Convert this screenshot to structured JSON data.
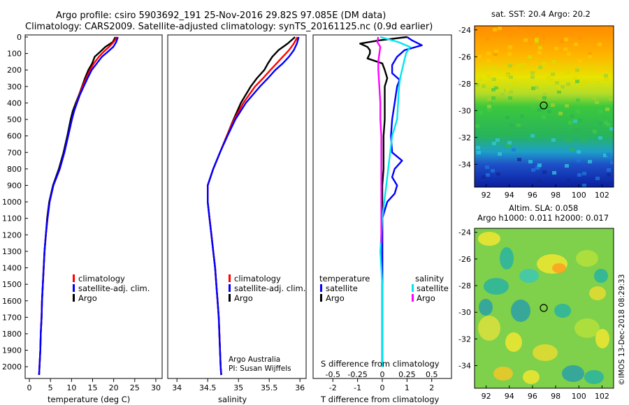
{
  "header": {
    "line1": "Argo profile: csiro 5903692_191 25-Nov-2016 29.82S 97.085E (DM data)",
    "line2": "Climatology: CARS2009. Satellite-adjusted climatology: synTS_20161125.nc (0.9d earlier)"
  },
  "colors": {
    "climatology": "#ff0000",
    "satellite": "#0000ff",
    "argo": "#000000",
    "sat_salinity": "#00e5ee",
    "argo_salinity": "#ff00ff"
  },
  "depth_ticks": [
    "0",
    "100",
    "200",
    "300",
    "400",
    "500",
    "600",
    "700",
    "800",
    "900",
    "1000",
    "1100",
    "1200",
    "1300",
    "1400",
    "1500",
    "1600",
    "1700",
    "1800",
    "1900",
    "2000"
  ],
  "chart_data": [
    {
      "type": "line",
      "name": "temperature",
      "xlabel": "temperature (deg C)",
      "xlim": [
        -1,
        31.5
      ],
      "xticks": [
        "0",
        "5",
        "10",
        "15",
        "20",
        "25",
        "30"
      ],
      "ylim": [
        0,
        2070
      ],
      "legend": {
        "climatology": "climatology",
        "satellite": "satellite-adj. clim.",
        "argo": "Argo"
      },
      "series": [
        {
          "name": "Argo",
          "color_key": "argo",
          "depth": [
            0,
            30,
            60,
            90,
            120,
            160,
            200,
            250,
            300,
            350,
            400,
            450,
            500,
            600,
            700,
            800,
            900,
            1000,
            1100,
            1200,
            1300,
            1400,
            1500,
            1600,
            1700,
            1800,
            1900,
            2000,
            2050
          ],
          "values": [
            20.4,
            19.8,
            18.0,
            16.8,
            15.5,
            14.9,
            14.0,
            13.2,
            12.5,
            11.8,
            11.0,
            10.3,
            9.8,
            9.0,
            8.1,
            7.0,
            5.6,
            4.7,
            4.2,
            3.9,
            3.6,
            3.4,
            3.2,
            3.0,
            2.9,
            2.7,
            2.6,
            2.4,
            2.3
          ]
        },
        {
          "name": "climatology",
          "color_key": "climatology",
          "depth": [
            0,
            30,
            60,
            90,
            120,
            160,
            200,
            250,
            300,
            350,
            400,
            450,
            500,
            600,
            700,
            800,
            900,
            1000,
            1100,
            1200,
            1300,
            1400,
            1500,
            1600,
            1700,
            1800,
            1900,
            2000,
            2050
          ],
          "values": [
            20.8,
            20.0,
            18.9,
            17.6,
            16.5,
            15.3,
            14.4,
            13.5,
            12.6,
            11.9,
            11.2,
            10.6,
            10.1,
            9.2,
            8.3,
            7.2,
            5.7,
            4.8,
            4.3,
            3.9,
            3.6,
            3.4,
            3.2,
            3.0,
            2.9,
            2.7,
            2.6,
            2.4,
            2.3
          ]
        },
        {
          "name": "satellite-adj. clim.",
          "color_key": "satellite",
          "depth": [
            0,
            30,
            60,
            90,
            120,
            160,
            200,
            250,
            300,
            350,
            400,
            450,
            500,
            600,
            700,
            800,
            900,
            1000,
            1100,
            1200,
            1300,
            1400,
            1500,
            1600,
            1700,
            1800,
            1900,
            2000,
            2050
          ],
          "values": [
            21.0,
            20.6,
            19.9,
            18.6,
            17.2,
            16.0,
            14.8,
            13.8,
            12.9,
            12.0,
            11.3,
            10.6,
            10.1,
            9.2,
            8.3,
            7.2,
            5.7,
            4.8,
            4.3,
            3.9,
            3.6,
            3.4,
            3.2,
            3.0,
            2.9,
            2.7,
            2.6,
            2.4,
            2.3
          ]
        }
      ]
    },
    {
      "type": "line",
      "name": "salinity",
      "xlabel": "salinity",
      "xlim": [
        33.85,
        36.1
      ],
      "xticks": [
        "34",
        "34.5",
        "35",
        "35.5",
        "36"
      ],
      "ylim": [
        0,
        2070
      ],
      "legend": {
        "climatology": "climatology",
        "satellite": "satellite-adj. clim.",
        "argo": "Argo"
      },
      "credit1": "Argo Australia",
      "credit2": "PI: Susan Wijffels",
      "series": [
        {
          "name": "Argo",
          "color_key": "argo",
          "depth": [
            0,
            40,
            80,
            120,
            160,
            200,
            250,
            300,
            400,
            500,
            600,
            700,
            800,
            900,
            1000,
            1100,
            1200,
            1300,
            1400,
            1500,
            1600,
            1700,
            1800,
            1900,
            2000,
            2050
          ],
          "values": [
            35.92,
            35.8,
            35.65,
            35.55,
            35.48,
            35.42,
            35.3,
            35.2,
            35.04,
            34.92,
            34.81,
            34.7,
            34.59,
            34.5,
            34.5,
            34.53,
            34.56,
            34.59,
            34.62,
            34.64,
            34.66,
            34.68,
            34.69,
            34.7,
            34.71,
            34.72
          ]
        },
        {
          "name": "climatology",
          "color_key": "climatology",
          "depth": [
            0,
            40,
            80,
            120,
            160,
            200,
            250,
            300,
            400,
            500,
            600,
            700,
            800,
            900,
            1000,
            1100,
            1200,
            1300,
            1400,
            1500,
            1600,
            1700,
            1800,
            1900,
            2000,
            2050
          ],
          "values": [
            35.96,
            35.9,
            35.82,
            35.72,
            35.62,
            35.52,
            35.4,
            35.27,
            35.08,
            34.93,
            34.81,
            34.7,
            34.59,
            34.5,
            34.5,
            34.53,
            34.56,
            34.59,
            34.62,
            34.64,
            34.66,
            34.68,
            34.69,
            34.7,
            34.71,
            34.72
          ]
        },
        {
          "name": "satellite-adj. clim.",
          "color_key": "satellite",
          "depth": [
            0,
            40,
            80,
            120,
            160,
            200,
            250,
            300,
            400,
            500,
            600,
            700,
            800,
            900,
            1000,
            1100,
            1200,
            1300,
            1400,
            1500,
            1600,
            1700,
            1800,
            1900,
            2000,
            2050
          ],
          "values": [
            35.98,
            35.95,
            35.9,
            35.82,
            35.72,
            35.6,
            35.48,
            35.35,
            35.12,
            34.95,
            34.82,
            34.7,
            34.59,
            34.5,
            34.5,
            34.53,
            34.56,
            34.59,
            34.62,
            34.64,
            34.66,
            34.68,
            34.69,
            34.7,
            34.71,
            34.72
          ]
        }
      ]
    },
    {
      "type": "line",
      "name": "difference",
      "xlabel": "T difference from climatology",
      "xlabel_top": "S difference from climatology",
      "xlim": [
        -2.8,
        2.8
      ],
      "xticks": [
        "-2",
        "-1",
        "0",
        "1",
        "2"
      ],
      "xticks_top": [
        "-0.5",
        "-0.25",
        "0",
        "0.25",
        "0.5"
      ],
      "ylim": [
        0,
        2070
      ],
      "legend": {
        "temperature_header": "temperature",
        "salinity_header": "salinity",
        "t_satellite": "satellite",
        "t_argo": "Argo",
        "s_satellite": "satellite",
        "s_argo": "Argo"
      },
      "series": [
        {
          "name": "T Argo",
          "color_key": "argo",
          "depth": [
            0,
            20,
            40,
            60,
            80,
            100,
            130,
            160,
            200,
            250,
            300,
            400,
            500,
            600,
            700,
            800,
            900,
            1000,
            1100,
            1200,
            1300,
            1400,
            1500,
            1600,
            1700,
            1800,
            1900,
            2000
          ],
          "values": [
            1.0,
            -0.1,
            -0.9,
            -0.6,
            -0.5,
            -0.5,
            -0.6,
            0.0,
            0.1,
            0.2,
            0.1,
            0.1,
            0.1,
            0.05,
            0.05,
            0.05,
            0.0,
            0.0,
            0.0,
            0.0,
            0.0,
            0.0,
            0.0,
            0.0,
            0.0,
            0.0,
            0.0,
            0.0
          ]
        },
        {
          "name": "T satellite",
          "color_key": "satellite",
          "depth": [
            0,
            20,
            50,
            80,
            120,
            170,
            220,
            260,
            300,
            400,
            500,
            600,
            700,
            750,
            800,
            850,
            900,
            950,
            1000,
            1100,
            1200,
            1300,
            1400,
            1500,
            1600,
            1700,
            1800,
            1900,
            2000
          ],
          "values": [
            1.0,
            1.2,
            1.6,
            0.9,
            0.6,
            0.4,
            0.4,
            0.7,
            0.6,
            0.5,
            0.4,
            0.35,
            0.4,
            0.8,
            0.5,
            0.4,
            0.6,
            0.5,
            0.2,
            0.0,
            0.0,
            0.0,
            0.0,
            0.0,
            0.0,
            0.0,
            0.0,
            0.0,
            0.0
          ]
        },
        {
          "name": "S satellite",
          "color_key": "sat_salinity",
          "depth": [
            0,
            30,
            60,
            100,
            150,
            200,
            250,
            300,
            400,
            500,
            600,
            700,
            800,
            900,
            1000,
            1100,
            1200,
            1300,
            1400,
            1500,
            1600,
            1700,
            1800,
            1900,
            2000
          ],
          "values": [
            -0.02,
            0.16,
            0.28,
            0.24,
            0.22,
            0.2,
            0.18,
            0.17,
            0.16,
            0.15,
            0.1,
            0.08,
            0.06,
            0.04,
            0.02,
            0.0,
            -0.01,
            -0.02,
            -0.01,
            0.0,
            0.0,
            0.0,
            0.0,
            0.0,
            0.0
          ]
        },
        {
          "name": "S Argo",
          "color_key": "argo_salinity",
          "depth": [
            0,
            30,
            60,
            100,
            150,
            200,
            300,
            400,
            500,
            600,
            700,
            800,
            900,
            1000,
            1100,
            1200,
            1250
          ],
          "values": [
            -0.04,
            -0.05,
            -0.02,
            -0.03,
            -0.04,
            -0.04,
            -0.03,
            -0.02,
            -0.02,
            -0.01,
            -0.01,
            -0.01,
            -0.01,
            -0.01,
            -0.01,
            -0.01,
            -0.01
          ]
        }
      ]
    }
  ],
  "map_sst": {
    "title": "sat. SST: 20.4 Argo: 20.2",
    "lat_ticks": [
      "-24",
      "-26",
      "-28",
      "-30",
      "-32",
      "-34"
    ],
    "lon_ticks": [
      "92",
      "94",
      "96",
      "98",
      "100",
      "102"
    ]
  },
  "map_sla": {
    "title1": "Altim. SLA: 0.058",
    "title2": "Argo h1000: 0.011 h2000: 0.017",
    "lat_ticks": [
      "-24",
      "-26",
      "-28",
      "-30",
      "-32",
      "-34"
    ],
    "lon_ticks": [
      "92",
      "94",
      "96",
      "98",
      "100",
      "102"
    ]
  },
  "footer": {
    "credit": "©IMOS 13-Dec-2018 08:29:33"
  }
}
